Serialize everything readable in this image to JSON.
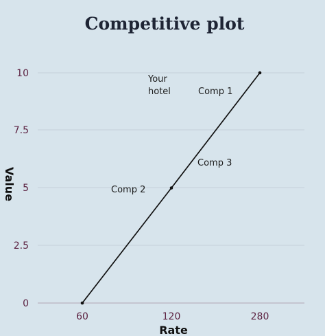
{
  "chart_data": {
    "type": "line",
    "title": "Competitive plot",
    "xlabel": "Rate",
    "ylabel": "Value",
    "x_categories": [
      "60",
      "120",
      "280"
    ],
    "y_ticks": [
      "0",
      "2.5",
      "5",
      "7.5",
      "10"
    ],
    "ylim": [
      0,
      10
    ],
    "grid": true,
    "series": [
      {
        "points": [
          {
            "x": "60",
            "y": 0
          },
          {
            "x": "120",
            "y": 5
          },
          {
            "x": "280",
            "y": 10
          }
        ]
      }
    ],
    "annotations": [
      {
        "text_lines": [
          "Your",
          "hotel"
        ]
      },
      {
        "text_lines": [
          "Comp 1"
        ]
      },
      {
        "text_lines": [
          "Comp 3"
        ]
      },
      {
        "text_lines": [
          "Comp 2"
        ]
      }
    ],
    "colors": {
      "background": "#d7e4ec",
      "line": "#111111",
      "tick_labels": "#5a1f3f",
      "title": "#1e2434"
    }
  }
}
